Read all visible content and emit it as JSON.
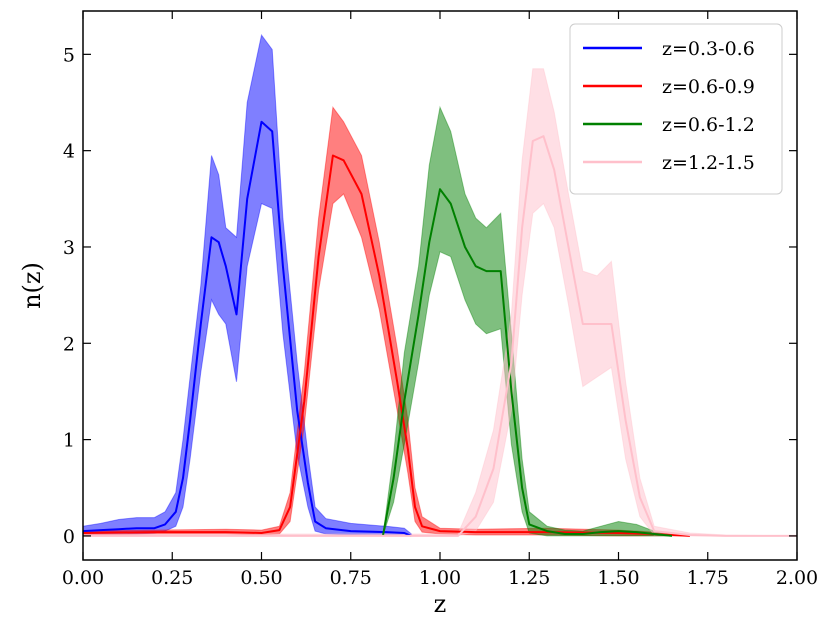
{
  "chart_data": {
    "type": "line",
    "title": "",
    "xlabel": "z",
    "ylabel": "n(z)",
    "xlim": [
      0.0,
      2.0
    ],
    "ylim": [
      -0.25,
      5.45
    ],
    "xticks": [
      0.0,
      0.25,
      0.5,
      0.75,
      1.0,
      1.25,
      1.5,
      1.75,
      2.0
    ],
    "xtick_labels": [
      "0.00",
      "0.25",
      "0.50",
      "0.75",
      "1.00",
      "1.25",
      "1.50",
      "1.75",
      "2.00"
    ],
    "yticks": [
      0,
      1,
      2,
      3,
      4,
      5
    ],
    "ytick_labels": [
      "0",
      "1",
      "2",
      "3",
      "4",
      "5"
    ],
    "grid": false,
    "legend_position": "top-right",
    "series": [
      {
        "name": "z=0.3-0.6",
        "color": "#0000ff",
        "x": [
          0.0,
          0.05,
          0.1,
          0.15,
          0.2,
          0.23,
          0.26,
          0.28,
          0.3,
          0.33,
          0.36,
          0.38,
          0.4,
          0.43,
          0.46,
          0.5,
          0.53,
          0.56,
          0.6,
          0.63,
          0.65,
          0.68,
          0.75,
          0.85,
          0.9,
          0.92
        ],
        "y": [
          0.05,
          0.06,
          0.07,
          0.08,
          0.08,
          0.12,
          0.25,
          0.6,
          1.2,
          2.2,
          3.1,
          3.05,
          2.8,
          2.3,
          3.5,
          4.3,
          4.2,
          2.8,
          1.3,
          0.55,
          0.15,
          0.08,
          0.05,
          0.04,
          0.03,
          0.0
        ],
        "upper": [
          0.1,
          0.13,
          0.17,
          0.19,
          0.19,
          0.25,
          0.45,
          1.0,
          1.65,
          2.6,
          3.95,
          3.75,
          3.2,
          3.1,
          4.5,
          5.2,
          5.05,
          3.3,
          1.8,
          0.85,
          0.3,
          0.18,
          0.13,
          0.1,
          0.08,
          0.02
        ],
        "lower": [
          0.02,
          0.02,
          0.02,
          0.02,
          0.03,
          0.05,
          0.1,
          0.3,
          0.8,
          1.7,
          2.45,
          2.3,
          2.2,
          1.6,
          2.8,
          3.45,
          3.4,
          2.1,
          0.85,
          0.3,
          0.05,
          0.02,
          0.01,
          0.0,
          0.0,
          0.0
        ]
      },
      {
        "name": "z=0.6-0.9",
        "color": "#ff0000",
        "x": [
          0.0,
          0.2,
          0.4,
          0.5,
          0.55,
          0.58,
          0.62,
          0.66,
          0.7,
          0.73,
          0.78,
          0.83,
          0.88,
          0.91,
          0.93,
          0.95,
          1.0,
          1.1,
          1.3,
          1.5,
          1.6,
          1.7
        ],
        "y": [
          0.03,
          0.04,
          0.04,
          0.03,
          0.06,
          0.3,
          1.4,
          2.9,
          3.95,
          3.9,
          3.55,
          2.7,
          1.6,
          0.9,
          0.3,
          0.1,
          0.05,
          0.04,
          0.04,
          0.03,
          0.02,
          0.0
        ],
        "upper": [
          0.05,
          0.06,
          0.07,
          0.06,
          0.1,
          0.45,
          1.7,
          3.3,
          4.45,
          4.3,
          3.95,
          3.05,
          1.95,
          1.2,
          0.5,
          0.2,
          0.08,
          0.07,
          0.08,
          0.06,
          0.04,
          0.0
        ],
        "lower": [
          0.01,
          0.02,
          0.02,
          0.01,
          0.02,
          0.15,
          1.15,
          2.55,
          3.45,
          3.55,
          3.1,
          2.35,
          1.3,
          0.65,
          0.15,
          0.04,
          0.02,
          0.01,
          0.01,
          0.0,
          0.0,
          0.0
        ]
      },
      {
        "name": "z=0.6-1.2",
        "color": "#008000",
        "x": [
          0.84,
          0.87,
          0.9,
          0.94,
          0.97,
          1.0,
          1.03,
          1.07,
          1.1,
          1.13,
          1.17,
          1.2,
          1.23,
          1.25,
          1.3,
          1.35,
          1.4,
          1.45,
          1.5,
          1.55,
          1.6,
          1.65
        ],
        "y": [
          0.0,
          0.6,
          1.4,
          2.3,
          3.05,
          3.6,
          3.45,
          3.0,
          2.8,
          2.75,
          2.75,
          1.5,
          0.5,
          0.12,
          0.05,
          0.02,
          0.02,
          0.04,
          0.05,
          0.04,
          0.02,
          0.0
        ],
        "upper": [
          0.0,
          0.85,
          1.9,
          2.8,
          3.85,
          4.45,
          4.2,
          3.55,
          3.3,
          3.2,
          3.35,
          2.1,
          0.8,
          0.25,
          0.1,
          0.06,
          0.05,
          0.1,
          0.15,
          0.12,
          0.05,
          0.0
        ],
        "lower": [
          0.0,
          0.35,
          0.95,
          1.8,
          2.5,
          2.95,
          2.9,
          2.45,
          2.2,
          2.1,
          2.15,
          0.95,
          0.25,
          0.03,
          0.0,
          0.0,
          0.0,
          0.0,
          0.0,
          0.0,
          0.0,
          0.0
        ]
      },
      {
        "name": "z=1.2-1.5",
        "color": "#ffc0cb",
        "x": [
          0.0,
          0.3,
          0.6,
          0.9,
          1.05,
          1.1,
          1.15,
          1.2,
          1.23,
          1.26,
          1.29,
          1.32,
          1.36,
          1.4,
          1.44,
          1.48,
          1.52,
          1.56,
          1.6,
          1.7,
          1.8,
          2.0
        ],
        "y": [
          0.0,
          0.0,
          0.0,
          0.0,
          0.0,
          0.2,
          0.7,
          1.8,
          3.2,
          4.1,
          4.15,
          3.8,
          3.0,
          2.2,
          2.2,
          2.2,
          1.2,
          0.4,
          0.05,
          0.01,
          0.0,
          0.0
        ],
        "upper": [
          0.02,
          0.02,
          0.02,
          0.02,
          0.02,
          0.45,
          1.1,
          2.3,
          3.9,
          4.85,
          4.85,
          4.4,
          3.55,
          2.75,
          2.7,
          2.85,
          1.6,
          0.6,
          0.1,
          0.03,
          0.01,
          0.0
        ],
        "lower": [
          0.0,
          0.0,
          0.0,
          0.0,
          0.0,
          0.05,
          0.35,
          1.3,
          2.5,
          3.35,
          3.45,
          3.2,
          2.4,
          1.55,
          1.65,
          1.75,
          0.8,
          0.2,
          0.01,
          0.0,
          0.0,
          0.0
        ]
      }
    ]
  }
}
